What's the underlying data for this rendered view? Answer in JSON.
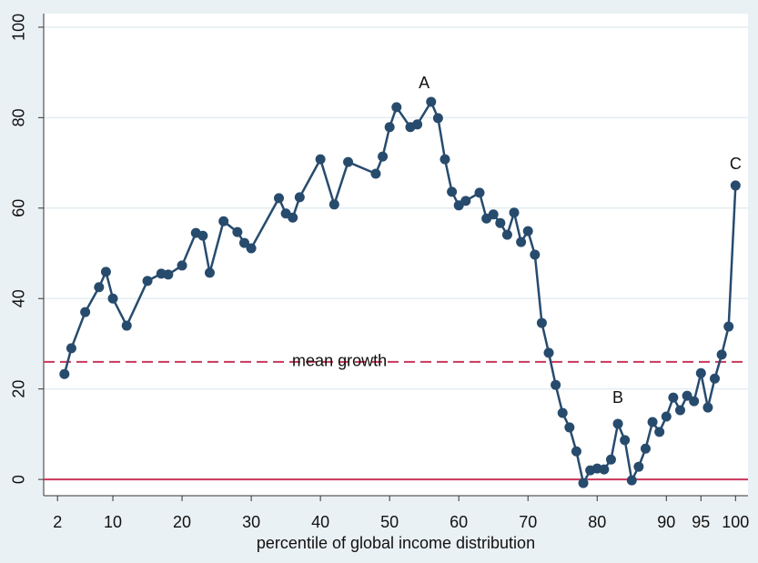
{
  "chart_data": {
    "type": "line",
    "x_label": "percentile of global income distribution",
    "x": [
      3,
      4,
      6,
      8,
      9,
      10,
      12,
      15,
      17,
      18,
      20,
      22,
      23,
      24,
      26,
      28,
      29,
      30,
      34,
      35,
      36,
      37,
      40,
      42,
      44,
      48,
      49,
      50,
      51,
      53,
      54,
      56,
      57,
      58,
      59,
      60,
      61,
      63,
      64,
      65,
      66,
      67,
      68,
      69,
      70,
      71,
      72,
      73,
      74,
      75,
      76,
      77,
      78,
      79,
      80,
      81,
      82,
      83,
      84,
      85,
      86,
      87,
      88,
      89,
      90,
      91,
      92,
      93,
      94,
      95,
      96,
      97,
      98,
      99,
      100
    ],
    "values": [
      23.3,
      29.0,
      37.0,
      42.5,
      45.9,
      40.0,
      34.0,
      43.9,
      45.5,
      45.3,
      47.3,
      54.5,
      53.9,
      45.7,
      57.1,
      54.7,
      52.3,
      51.1,
      62.2,
      58.8,
      57.9,
      62.4,
      70.8,
      60.8,
      70.2,
      67.6,
      71.4,
      77.9,
      82.3,
      77.9,
      78.5,
      83.5,
      79.9,
      70.8,
      63.6,
      60.6,
      61.6,
      63.4,
      57.7,
      58.6,
      56.7,
      54.1,
      59.0,
      52.5,
      54.9,
      49.7,
      34.6,
      28.0,
      20.9,
      14.7,
      11.5,
      6.2,
      -0.8,
      2.0,
      2.4,
      2.2,
      4.4,
      12.3,
      8.7,
      -0.2,
      2.8,
      6.8,
      12.7,
      10.5,
      13.9,
      18.1,
      15.3,
      18.5,
      17.3,
      23.5,
      15.9,
      22.3,
      27.6,
      33.8,
      65.0
    ],
    "color": "#274b6d",
    "xlim": [
      0,
      101.8
    ],
    "ylim": [
      -3.6,
      103
    ],
    "xticks": [
      2,
      10,
      20,
      30,
      40,
      50,
      60,
      70,
      80,
      90,
      95,
      100
    ],
    "yticks": [
      0,
      20,
      40,
      60,
      80,
      100
    ],
    "grid": true,
    "hlines": [
      {
        "value": 26,
        "label": "mean growth",
        "color": "#c8375a",
        "style": "dashed"
      },
      {
        "value": 0,
        "color": "#c8375a",
        "style": "solid"
      }
    ],
    "annotations": [
      {
        "text": "A",
        "x": 55,
        "y": 87.5
      },
      {
        "text": "B",
        "x": 83,
        "y": 17.9
      },
      {
        "text": "C",
        "x": 100,
        "y": 69.6
      }
    ]
  }
}
